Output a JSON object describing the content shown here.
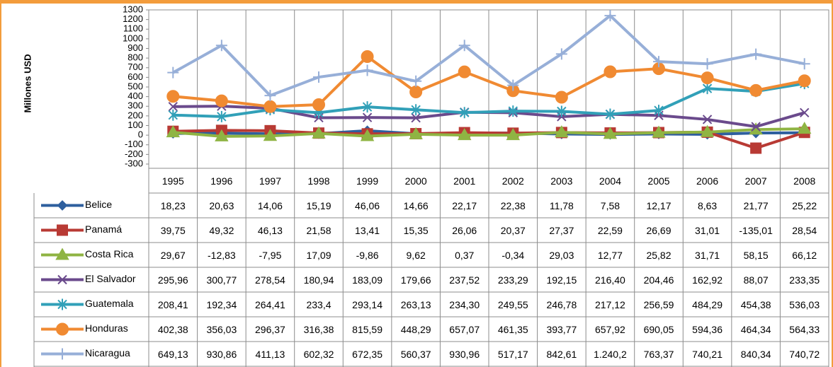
{
  "chart_data": {
    "type": "line",
    "y_label": "Millones USD",
    "categories": [
      "1995",
      "1996",
      "1997",
      "1998",
      "1999",
      "2000",
      "2001",
      "2002",
      "2003",
      "2004",
      "2005",
      "2006",
      "2007",
      "2008"
    ],
    "ylim": [
      -300,
      1300
    ],
    "yticks": [
      1300,
      1200,
      1100,
      1000,
      900,
      800,
      700,
      600,
      500,
      400,
      300,
      200,
      100,
      0,
      -100,
      -200,
      -300
    ],
    "series": [
      {
        "name": "Belice",
        "color": "#2e5f9e",
        "marker": "diamond",
        "values": [
          18.23,
          20.63,
          14.06,
          15.19,
          46.06,
          14.66,
          22.17,
          22.38,
          11.78,
          7.58,
          12.17,
          8.63,
          21.77,
          25.22
        ],
        "value_labels": [
          "18,23",
          "20,63",
          "14,06",
          "15,19",
          "46,06",
          "14,66",
          "22,17",
          "22,38",
          "11,78",
          "7,58",
          "12,17",
          "8,63",
          "21,77",
          "25,22"
        ]
      },
      {
        "name": "Panamá",
        "color": "#b83a34",
        "marker": "square",
        "values": [
          39.75,
          49.32,
          46.13,
          21.58,
          13.41,
          15.35,
          26.06,
          20.37,
          27.37,
          22.59,
          26.69,
          31.01,
          -135.01,
          28.54
        ],
        "value_labels": [
          "39,75",
          "49,32",
          "46,13",
          "21,58",
          "13,41",
          "15,35",
          "26,06",
          "20,37",
          "27,37",
          "22,59",
          "26,69",
          "31,01",
          "-135,01",
          "28,54"
        ]
      },
      {
        "name": "Costa Rica",
        "color": "#8fb443",
        "marker": "triangle",
        "values": [
          29.67,
          -12.83,
          -7.95,
          17.09,
          -9.86,
          9.62,
          0.37,
          -0.34,
          29.03,
          12.77,
          25.82,
          31.71,
          58.15,
          66.12
        ],
        "value_labels": [
          "29,67",
          "-12,83",
          "-7,95",
          "17,09",
          "-9,86",
          "9,62",
          "0,37",
          "-0,34",
          "29,03",
          "12,77",
          "25,82",
          "31,71",
          "58,15",
          "66,12"
        ]
      },
      {
        "name": "El Salvador",
        "color": "#6a4a8c",
        "marker": "x",
        "values": [
          295.96,
          300.77,
          278.54,
          180.94,
          183.09,
          179.66,
          237.52,
          233.29,
          192.15,
          216.4,
          204.46,
          162.92,
          88.07,
          233.35
        ],
        "value_labels": [
          "295,96",
          "300,77",
          "278,54",
          "180,94",
          "183,09",
          "179,66",
          "237,52",
          "233,29",
          "192,15",
          "216,40",
          "204,46",
          "162,92",
          "88,07",
          "233,35"
        ]
      },
      {
        "name": "Guatemala",
        "color": "#31a0b8",
        "marker": "asterisk",
        "values": [
          208.41,
          192.34,
          264.41,
          233.4,
          293.14,
          263.13,
          234.3,
          249.55,
          246.78,
          217.12,
          256.59,
          484.29,
          454.38,
          536.03
        ],
        "value_labels": [
          "208,41",
          "192,34",
          "264,41",
          "233,4",
          "293,14",
          "263,13",
          "234,30",
          "249,55",
          "246,78",
          "217,12",
          "256,59",
          "484,29",
          "454,38",
          "536,03"
        ]
      },
      {
        "name": "Honduras",
        "color": "#f08a32",
        "marker": "circle",
        "values": [
          402.38,
          356.03,
          296.37,
          316.38,
          815.59,
          448.29,
          657.07,
          461.35,
          393.77,
          657.92,
          690.05,
          594.36,
          464.34,
          564.33
        ],
        "value_labels": [
          "402,38",
          "356,03",
          "296,37",
          "316,38",
          "815,59",
          "448,29",
          "657,07",
          "461,35",
          "393,77",
          "657,92",
          "690,05",
          "594,36",
          "464,34",
          "564,33"
        ]
      },
      {
        "name": "Nicaragua",
        "color": "#97afd8",
        "marker": "plus",
        "values": [
          649.13,
          930.86,
          411.13,
          602.32,
          672.35,
          560.37,
          930.96,
          517.17,
          842.61,
          1240.2,
          763.37,
          740.21,
          840.34,
          740.72
        ],
        "value_labels": [
          "649,13",
          "930,86",
          "411,13",
          "602,32",
          "672,35",
          "560,37",
          "930,96",
          "517,17",
          "842,61",
          "1.240,2",
          "763,37",
          "740,21",
          "840,34",
          "740,72"
        ]
      }
    ]
  }
}
